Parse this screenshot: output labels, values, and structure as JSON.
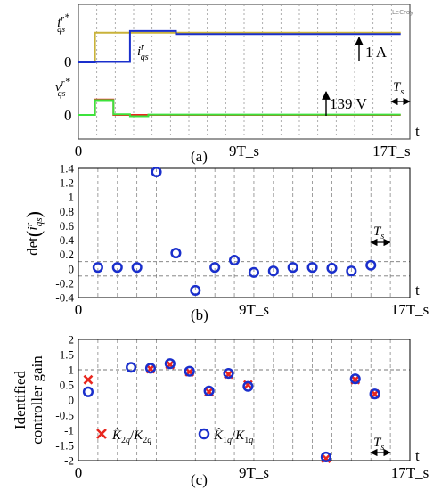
{
  "chart_data": [
    {
      "type": "line",
      "caption": "(a)",
      "x_tick_labels": [
        {
          "x": 0,
          "label": "0"
        },
        {
          "x": 9,
          "label": "9T_s"
        },
        {
          "x": 17,
          "label": "17T_s"
        }
      ],
      "x_axis_letter": "t",
      "xlim": [
        0,
        18
      ],
      "series": [
        {
          "name": "i_qs^r*",
          "color": "#c9b23a",
          "points": [
            [
              0,
              0
            ],
            [
              0.9,
              0
            ],
            [
              0.9,
              1.28
            ],
            [
              17.5,
              1.28
            ]
          ]
        },
        {
          "name": "i_qs^r",
          "color": "#1a2fcc",
          "points": [
            [
              0,
              0
            ],
            [
              0.9,
              0
            ],
            [
              0.9,
              0.02
            ],
            [
              2.8,
              0.02
            ],
            [
              2.8,
              1.35
            ],
            [
              5.3,
              1.35
            ],
            [
              5.3,
              1.22
            ],
            [
              17.5,
              1.22
            ]
          ]
        },
        {
          "name": "v_qs^r*",
          "color": "#e8261e",
          "points": [
            [
              0,
              0
            ],
            [
              0.9,
              0
            ],
            [
              0.9,
              92
            ],
            [
              1.9,
              92
            ],
            [
              1.9,
              0
            ],
            [
              17.5,
              0
            ]
          ]
        },
        {
          "name": "v_qs^r",
          "color": "#3ce33c",
          "points": [
            [
              0,
              0
            ],
            [
              0.9,
              0
            ],
            [
              0.9,
              88
            ],
            [
              1.9,
              88
            ],
            [
              1.9,
              4
            ],
            [
              2.8,
              4
            ],
            [
              2.8,
              -8
            ],
            [
              3.8,
              -8
            ],
            [
              3.8,
              2
            ],
            [
              17.5,
              2
            ]
          ]
        }
      ],
      "current_zero_label": "0",
      "voltage_zero_label": "0",
      "current_scale_label": "1 A",
      "voltage_scale_label": "139 V",
      "period_label": "T_s",
      "brand": "LeCroy",
      "colors": {
        "grid": "#9a9a9a",
        "frame": "#555555"
      }
    },
    {
      "type": "scatter",
      "caption": "(b)",
      "ylabel": "det(i_qs^r)",
      "ylim": [
        -0.4,
        1.4
      ],
      "y_ticks": [
        "-0.4",
        "-0.2",
        "0",
        "0.2",
        "0.4",
        "0.6",
        "0.8",
        "1",
        "1.2",
        "1.4"
      ],
      "x_tick_labels": [
        {
          "x": 0,
          "label": "0"
        },
        {
          "x": 9,
          "label": "9T_s"
        },
        {
          "x": 17,
          "label": "17T_s"
        }
      ],
      "x_axis_letter": "t",
      "xlim": [
        0,
        17
      ],
      "hlines": [
        0.1,
        -0.1
      ],
      "period_label": "T_s",
      "series": [
        {
          "name": "det",
          "marker": "circle",
          "color": "#1a2fcc",
          "points": [
            [
              1,
              0.02
            ],
            [
              2,
              0.02
            ],
            [
              3,
              0.02
            ],
            [
              4,
              1.35
            ],
            [
              5,
              0.22
            ],
            [
              6,
              -0.3
            ],
            [
              7,
              0.02
            ],
            [
              8,
              0.12
            ],
            [
              9,
              -0.05
            ],
            [
              10,
              -0.03
            ],
            [
              11,
              0.02
            ],
            [
              12,
              0.02
            ],
            [
              13,
              0.01
            ],
            [
              14,
              -0.03
            ],
            [
              15,
              0.05
            ]
          ]
        }
      ]
    },
    {
      "type": "scatter",
      "caption": "(c)",
      "ylabel_lines": [
        "Identified",
        "controller gain"
      ],
      "ylim": [
        -2,
        2
      ],
      "y_ticks": [
        "-2",
        "-1.5",
        "-1",
        "-0.5",
        "0",
        "0.5",
        "1",
        "1.5",
        "2"
      ],
      "x_tick_labels": [
        {
          "x": 0,
          "label": "0"
        },
        {
          "x": 9,
          "label": "9T_s"
        },
        {
          "x": 17,
          "label": "17T_s"
        }
      ],
      "x_axis_letter": "t",
      "xlim": [
        0,
        17
      ],
      "hlines": [
        1
      ],
      "period_label": "T_s",
      "series": [
        {
          "name": "K2q_hat/K2q",
          "marker": "x",
          "color": "#e8261e",
          "points": [
            [
              0.5,
              0.67
            ],
            [
              3.7,
              1.03
            ],
            [
              4.7,
              1.17
            ],
            [
              5.7,
              0.93
            ],
            [
              6.7,
              0.27
            ],
            [
              7.7,
              0.85
            ],
            [
              8.7,
              0.5
            ],
            [
              12.7,
              -1.93
            ],
            [
              14.2,
              0.67
            ],
            [
              15.2,
              0.2
            ]
          ]
        },
        {
          "name": "K1q_hat/K1q",
          "marker": "circle",
          "color": "#1a2fcc",
          "points": [
            [
              0.5,
              0.27
            ],
            [
              2.7,
              1.08
            ],
            [
              3.7,
              1.05
            ],
            [
              4.7,
              1.2
            ],
            [
              5.7,
              0.95
            ],
            [
              6.7,
              0.3
            ],
            [
              7.7,
              0.88
            ],
            [
              8.7,
              0.45
            ],
            [
              12.7,
              -1.88
            ],
            [
              14.2,
              0.7
            ],
            [
              15.2,
              0.2
            ]
          ]
        }
      ]
    }
  ]
}
